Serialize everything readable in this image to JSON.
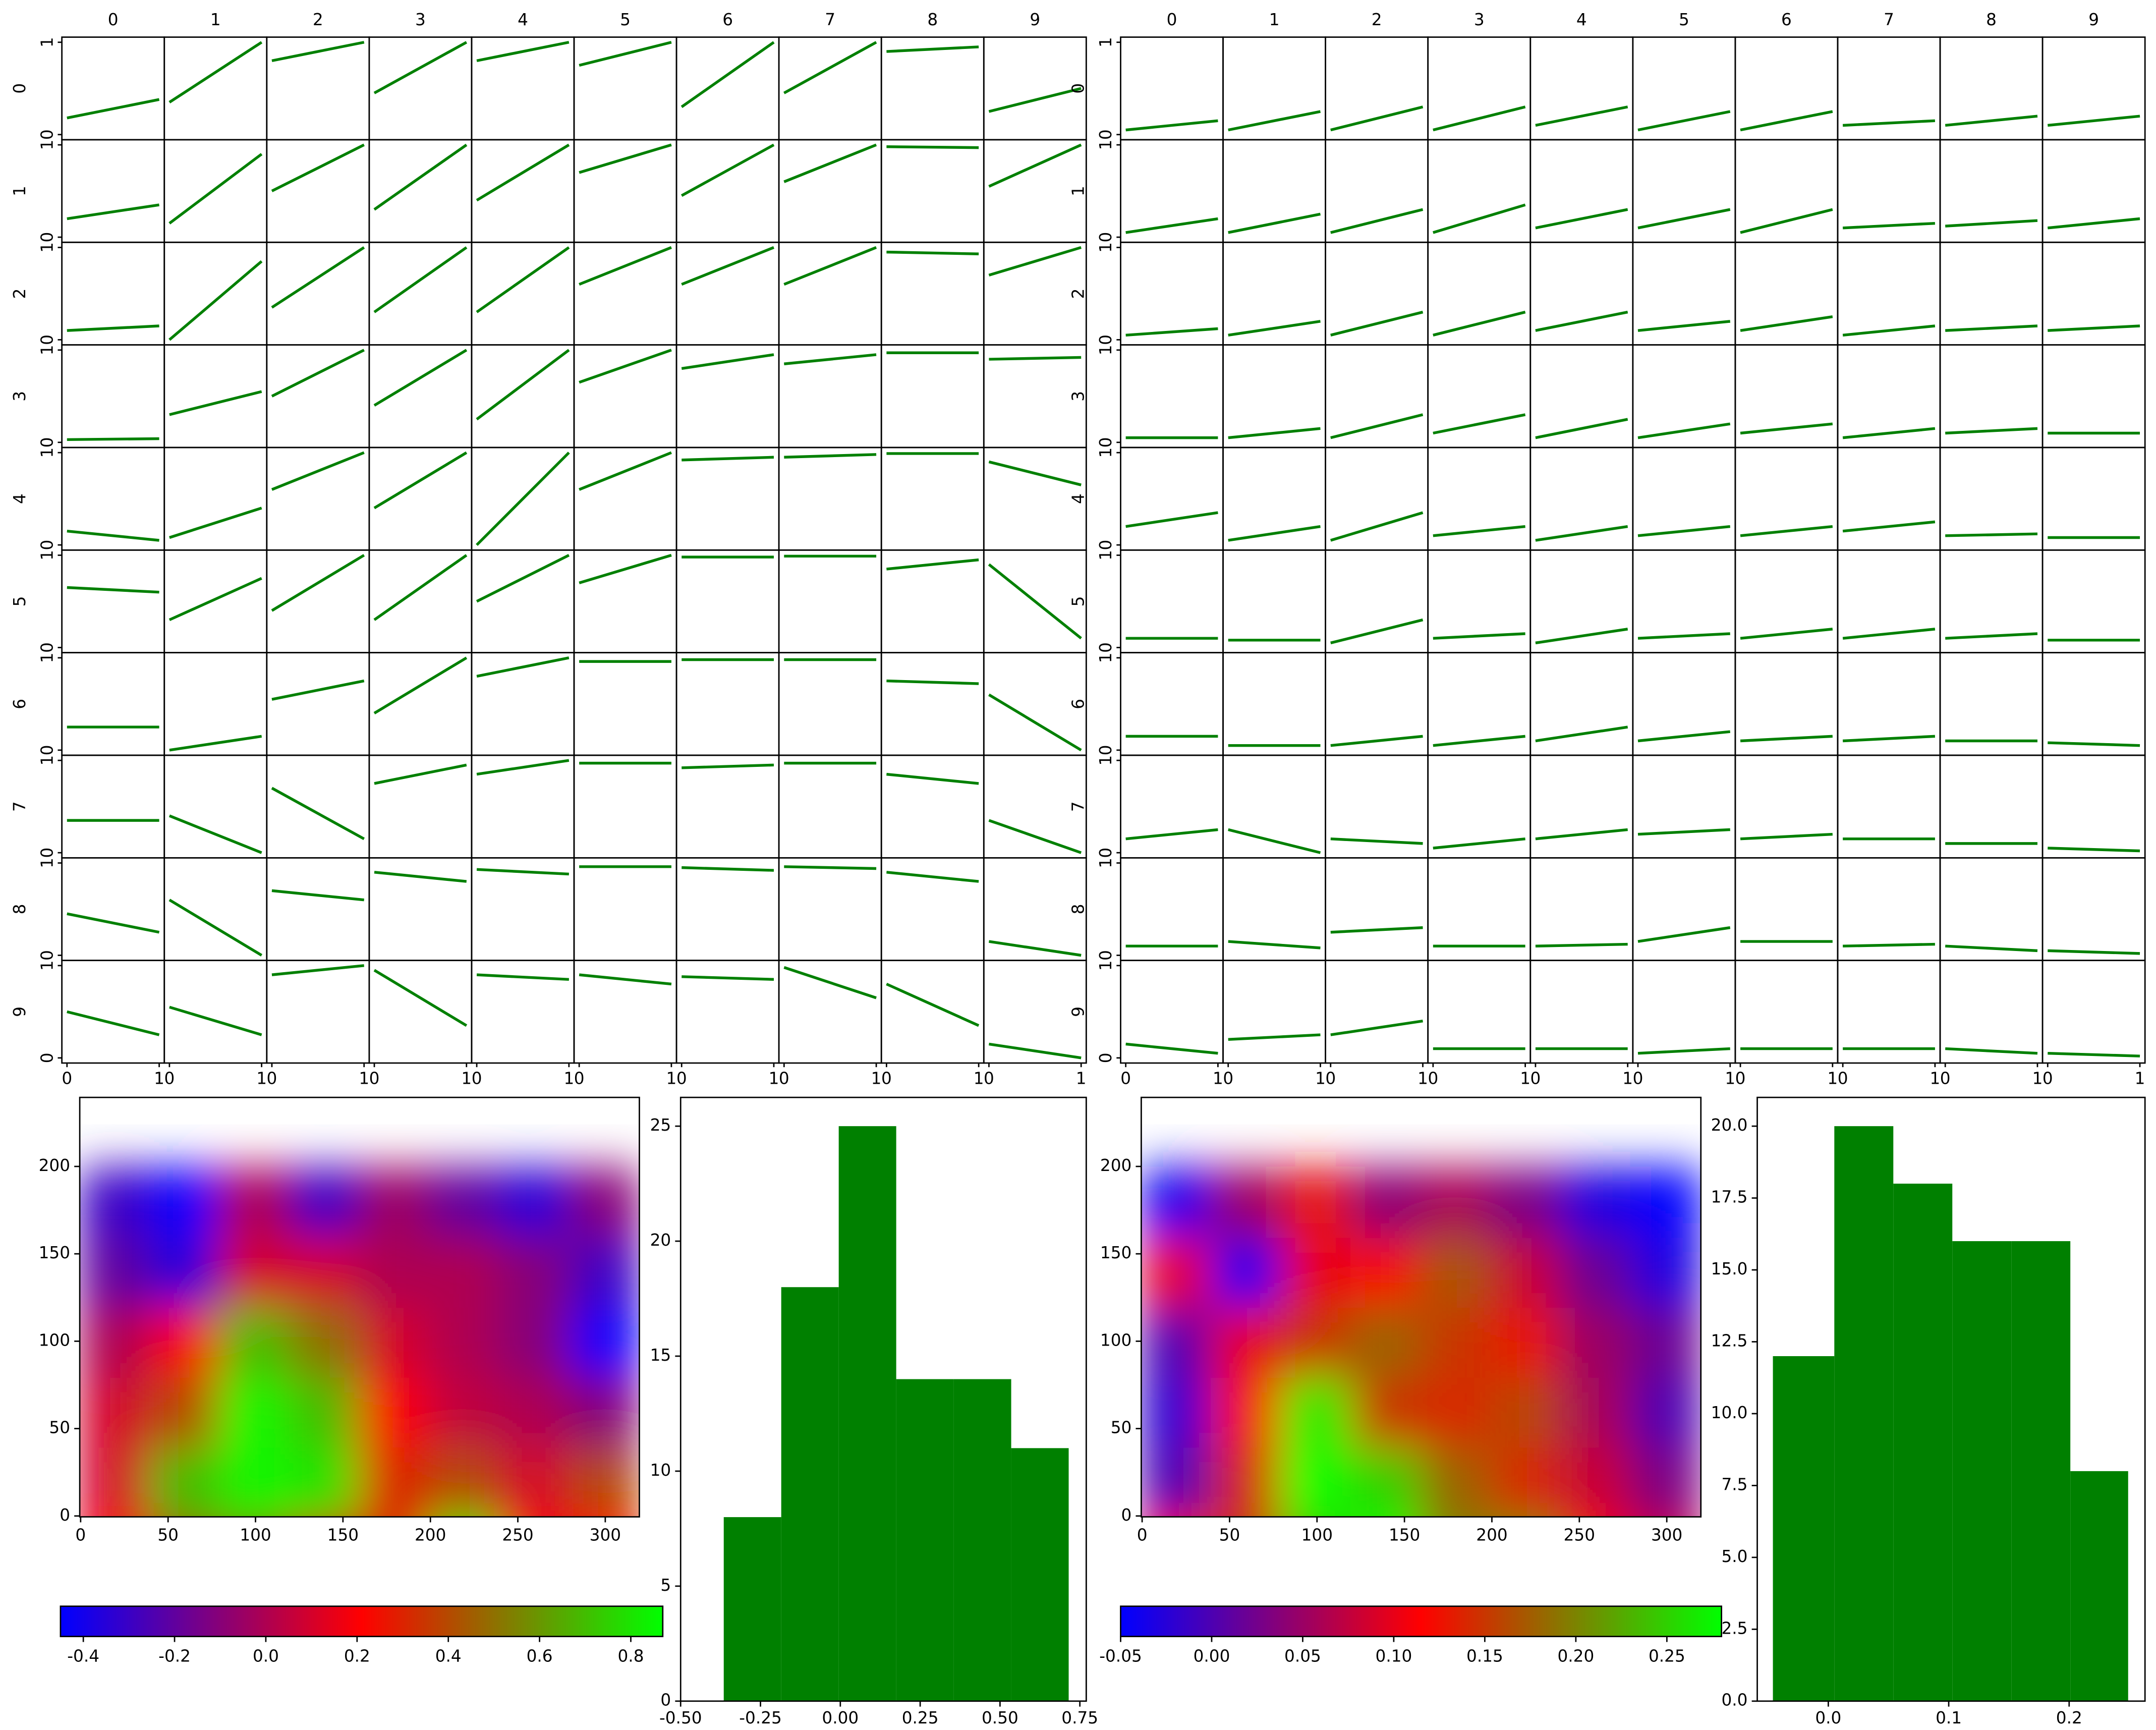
{
  "chart_data": [
    {
      "type": "regression-grid",
      "col_labels": [
        "0",
        "1",
        "2",
        "3",
        "4",
        "5",
        "6",
        "7",
        "8",
        "9"
      ],
      "row_labels": [
        "0",
        "1",
        "2",
        "3",
        "4",
        "5",
        "6",
        "7",
        "8",
        "9"
      ],
      "xlim": [
        0,
        1
      ],
      "ylim": [
        0,
        1
      ],
      "xticks": [
        0,
        1
      ],
      "yticks": [
        0,
        1
      ],
      "color": "#008000",
      "lines": [
        [
          0.18,
          0.38
        ],
        [
          0.35,
          1.0
        ],
        [
          0.8,
          1.0
        ],
        [
          0.45,
          1.0
        ],
        [
          0.8,
          1.0
        ],
        [
          0.75,
          1.0
        ],
        [
          0.3,
          1.0
        ],
        [
          0.45,
          1.0
        ],
        [
          0.9,
          0.95
        ],
        [
          0.25,
          0.5
        ],
        [
          0.2,
          0.35
        ],
        [
          0.15,
          0.9
        ],
        [
          0.5,
          1.0
        ],
        [
          0.3,
          1.0
        ],
        [
          0.4,
          1.0
        ],
        [
          0.7,
          1.0
        ],
        [
          0.45,
          1.0
        ],
        [
          0.6,
          1.0
        ],
        [
          0.98,
          0.97
        ],
        [
          0.55,
          1.0
        ],
        [
          0.1,
          0.15
        ],
        [
          0.0,
          0.85
        ],
        [
          0.35,
          1.0
        ],
        [
          0.3,
          1.0
        ],
        [
          0.3,
          1.0
        ],
        [
          0.6,
          1.0
        ],
        [
          0.6,
          1.0
        ],
        [
          0.6,
          1.0
        ],
        [
          0.95,
          0.93
        ],
        [
          0.7,
          1.0
        ],
        [
          0.03,
          0.04
        ],
        [
          0.3,
          0.55
        ],
        [
          0.5,
          1.0
        ],
        [
          0.4,
          1.0
        ],
        [
          0.25,
          1.0
        ],
        [
          0.65,
          1.0
        ],
        [
          0.8,
          0.95
        ],
        [
          0.85,
          0.95
        ],
        [
          0.97,
          0.97
        ],
        [
          0.9,
          0.92
        ],
        [
          0.15,
          0.05
        ],
        [
          0.08,
          0.4
        ],
        [
          0.6,
          1.0
        ],
        [
          0.4,
          1.0
        ],
        [
          0.0,
          1.0
        ],
        [
          0.6,
          1.0
        ],
        [
          0.92,
          0.95
        ],
        [
          0.95,
          0.98
        ],
        [
          0.99,
          0.99
        ],
        [
          0.9,
          0.65
        ],
        [
          0.65,
          0.6
        ],
        [
          0.3,
          0.75
        ],
        [
          0.4,
          1.0
        ],
        [
          0.3,
          1.0
        ],
        [
          0.5,
          1.0
        ],
        [
          0.7,
          1.0
        ],
        [
          0.98,
          0.98
        ],
        [
          0.99,
          0.99
        ],
        [
          0.85,
          0.95
        ],
        [
          0.9,
          0.1
        ],
        [
          0.25,
          0.25
        ],
        [
          0.0,
          0.15
        ],
        [
          0.55,
          0.75
        ],
        [
          0.4,
          1.0
        ],
        [
          0.8,
          1.0
        ],
        [
          0.96,
          0.96
        ],
        [
          0.98,
          0.98
        ],
        [
          0.98,
          0.98
        ],
        [
          0.75,
          0.72
        ],
        [
          0.6,
          0.0
        ],
        [
          0.35,
          0.35
        ],
        [
          0.4,
          0.0
        ],
        [
          0.7,
          0.15
        ],
        [
          0.75,
          0.95
        ],
        [
          0.85,
          1.0
        ],
        [
          0.97,
          0.97
        ],
        [
          0.92,
          0.95
        ],
        [
          0.97,
          0.97
        ],
        [
          0.85,
          0.75
        ],
        [
          0.35,
          0.0
        ],
        [
          0.45,
          0.25
        ],
        [
          0.6,
          0.0
        ],
        [
          0.7,
          0.6
        ],
        [
          0.9,
          0.8
        ],
        [
          0.93,
          0.88
        ],
        [
          0.96,
          0.96
        ],
        [
          0.95,
          0.92
        ],
        [
          0.96,
          0.94
        ],
        [
          0.9,
          0.8
        ],
        [
          0.15,
          0.0
        ],
        [
          0.5,
          0.25
        ],
        [
          0.55,
          0.25
        ],
        [
          0.9,
          1.0
        ],
        [
          0.95,
          0.35
        ],
        [
          0.9,
          0.85
        ],
        [
          0.9,
          0.8
        ],
        [
          0.88,
          0.85
        ],
        [
          0.98,
          0.65
        ],
        [
          0.8,
          0.35
        ],
        [
          0.15,
          0.0
        ]
      ]
    },
    {
      "type": "regression-grid",
      "col_labels": [
        "0",
        "1",
        "2",
        "3",
        "4",
        "5",
        "6",
        "7",
        "8",
        "9"
      ],
      "row_labels": [
        "0",
        "1",
        "2",
        "3",
        "4",
        "5",
        "6",
        "7",
        "8",
        "9"
      ],
      "xlim": [
        0,
        1
      ],
      "ylim": [
        0,
        1
      ],
      "xticks": [
        0,
        1
      ],
      "yticks": [
        0,
        1
      ],
      "color": "#008000",
      "lines": [
        [
          0.05,
          0.15
        ],
        [
          0.05,
          0.25
        ],
        [
          0.05,
          0.3
        ],
        [
          0.05,
          0.3
        ],
        [
          0.1,
          0.3
        ],
        [
          0.05,
          0.25
        ],
        [
          0.05,
          0.25
        ],
        [
          0.1,
          0.15
        ],
        [
          0.1,
          0.2
        ],
        [
          0.1,
          0.2
        ],
        [
          0.05,
          0.2
        ],
        [
          0.05,
          0.25
        ],
        [
          0.05,
          0.3
        ],
        [
          0.05,
          0.35
        ],
        [
          0.1,
          0.3
        ],
        [
          0.1,
          0.3
        ],
        [
          0.05,
          0.3
        ],
        [
          0.1,
          0.15
        ],
        [
          0.12,
          0.18
        ],
        [
          0.1,
          0.2
        ],
        [
          0.05,
          0.12
        ],
        [
          0.05,
          0.2
        ],
        [
          0.05,
          0.3
        ],
        [
          0.05,
          0.3
        ],
        [
          0.1,
          0.3
        ],
        [
          0.1,
          0.2
        ],
        [
          0.1,
          0.25
        ],
        [
          0.05,
          0.15
        ],
        [
          0.1,
          0.15
        ],
        [
          0.1,
          0.15
        ],
        [
          0.05,
          0.05
        ],
        [
          0.05,
          0.15
        ],
        [
          0.05,
          0.3
        ],
        [
          0.1,
          0.3
        ],
        [
          0.05,
          0.25
        ],
        [
          0.05,
          0.2
        ],
        [
          0.1,
          0.2
        ],
        [
          0.05,
          0.15
        ],
        [
          0.1,
          0.15
        ],
        [
          0.1,
          0.1
        ],
        [
          0.2,
          0.35
        ],
        [
          0.05,
          0.2
        ],
        [
          0.05,
          0.35
        ],
        [
          0.1,
          0.2
        ],
        [
          0.05,
          0.2
        ],
        [
          0.1,
          0.2
        ],
        [
          0.1,
          0.2
        ],
        [
          0.15,
          0.25
        ],
        [
          0.1,
          0.12
        ],
        [
          0.08,
          0.08
        ],
        [
          0.1,
          0.1
        ],
        [
          0.08,
          0.08
        ],
        [
          0.05,
          0.3
        ],
        [
          0.1,
          0.15
        ],
        [
          0.05,
          0.2
        ],
        [
          0.1,
          0.15
        ],
        [
          0.1,
          0.2
        ],
        [
          0.1,
          0.2
        ],
        [
          0.1,
          0.15
        ],
        [
          0.08,
          0.08
        ],
        [
          0.15,
          0.15
        ],
        [
          0.05,
          0.05
        ],
        [
          0.05,
          0.15
        ],
        [
          0.05,
          0.15
        ],
        [
          0.1,
          0.25
        ],
        [
          0.1,
          0.2
        ],
        [
          0.1,
          0.15
        ],
        [
          0.1,
          0.15
        ],
        [
          0.1,
          0.1
        ],
        [
          0.08,
          0.05
        ],
        [
          0.15,
          0.25
        ],
        [
          0.25,
          0.0
        ],
        [
          0.15,
          0.1
        ],
        [
          0.05,
          0.15
        ],
        [
          0.15,
          0.25
        ],
        [
          0.2,
          0.25
        ],
        [
          0.15,
          0.2
        ],
        [
          0.15,
          0.15
        ],
        [
          0.1,
          0.1
        ],
        [
          0.05,
          0.02
        ],
        [
          0.1,
          0.1
        ],
        [
          0.15,
          0.08
        ],
        [
          0.25,
          0.3
        ],
        [
          0.1,
          0.1
        ],
        [
          0.1,
          0.12
        ],
        [
          0.15,
          0.3
        ],
        [
          0.15,
          0.15
        ],
        [
          0.1,
          0.12
        ],
        [
          0.1,
          0.05
        ],
        [
          0.05,
          0.02
        ],
        [
          0.15,
          0.05
        ],
        [
          0.2,
          0.25
        ],
        [
          0.25,
          0.4
        ],
        [
          0.1,
          0.1
        ],
        [
          0.1,
          0.1
        ],
        [
          0.05,
          0.1
        ],
        [
          0.1,
          0.1
        ],
        [
          0.1,
          0.1
        ],
        [
          0.1,
          0.05
        ],
        [
          0.05,
          0.02
        ]
      ]
    },
    {
      "type": "heatmap",
      "xlim": [
        -0.5,
        319.5
      ],
      "ylim": [
        239.5,
        -0.5
      ],
      "xticks": [
        0,
        50,
        100,
        150,
        200,
        250,
        300
      ],
      "yticks": [
        0,
        50,
        100,
        150,
        200
      ],
      "colormap": [
        "#0000ff",
        "#ff0000",
        "#00ff00"
      ],
      "clim": [
        -0.45,
        0.87
      ],
      "cticks": [
        -0.4,
        -0.2,
        {
          "value": 0,
          "label": "0.0"
        },
        0.2,
        0.4,
        0.6,
        0.8
      ],
      "values": [
        [
          0.2,
          0.5,
          0.6,
          0.4,
          0.3,
          0.8,
          0.2,
          0.2
        ],
        [
          0.1,
          0.7,
          0.85,
          0.8,
          0.3,
          0.4,
          0.1,
          0.4
        ],
        [
          0.1,
          0.4,
          0.85,
          0.7,
          0.2,
          0.05,
          0.0,
          -0.1
        ],
        [
          0.0,
          0.2,
          0.7,
          0.5,
          0.1,
          0.0,
          -0.1,
          -0.45
        ],
        [
          -0.2,
          -0.35,
          0.1,
          0.1,
          0.0,
          0.0,
          -0.1,
          -0.3
        ],
        [
          -0.3,
          -0.45,
          0.0,
          -0.3,
          -0.05,
          -0.2,
          -0.35,
          -0.1
        ]
      ]
    },
    {
      "type": "histogram",
      "color": "#008000",
      "bins": [
        -0.365,
        -0.185,
        -0.005,
        0.175,
        0.355,
        0.535,
        0.715
      ],
      "values": [
        8,
        18,
        25,
        14,
        14,
        11
      ],
      "xlim": [
        -0.5,
        0.77
      ],
      "ylim": [
        0,
        26.25
      ],
      "xticks": [
        {
          "value": -0.5,
          "label": "-0.50"
        },
        -0.25,
        {
          "value": 0,
          "label": "0.00"
        },
        0.25,
        {
          "value": 0.5,
          "label": "0.50"
        },
        0.75
      ],
      "yticks": [
        0,
        5,
        10,
        15,
        20,
        25
      ]
    },
    {
      "type": "heatmap",
      "xlim": [
        -0.5,
        319.5
      ],
      "ylim": [
        239.5,
        -0.5
      ],
      "xticks": [
        0,
        50,
        100,
        150,
        200,
        250,
        300
      ],
      "yticks": [
        0,
        50,
        100,
        150,
        200
      ],
      "colormap": [
        "#0000ff",
        "#ff0000",
        "#00ff00"
      ],
      "clim": [
        -0.05,
        0.28
      ],
      "cticks": [
        -0.05,
        {
          "value": 0,
          "label": "0.00"
        },
        0.05,
        {
          "value": 0.1,
          "label": "0.10"
        },
        0.15,
        {
          "value": 0.2,
          "label": "0.20"
        },
        0.25
      ],
      "values": [
        [
          0.12,
          0.15,
          0.25,
          0.28,
          0.2,
          0.2,
          0.12,
          0.08
        ],
        [
          0.0,
          0.14,
          0.28,
          0.25,
          0.18,
          0.14,
          0.08,
          0.03
        ],
        [
          -0.02,
          0.12,
          0.27,
          0.15,
          0.14,
          0.16,
          0.06,
          0.0
        ],
        [
          0.0,
          0.1,
          0.15,
          0.18,
          0.15,
          0.13,
          0.05,
          0.02
        ],
        [
          0.1,
          -0.04,
          0.1,
          0.12,
          0.17,
          0.08,
          0.02,
          -0.03
        ],
        [
          -0.04,
          0.05,
          0.13,
          0.04,
          0.06,
          0.03,
          -0.03,
          -0.05
        ]
      ]
    },
    {
      "type": "histogram",
      "color": "#008000",
      "bins": [
        -0.046,
        0.005,
        0.054,
        0.103,
        0.152,
        0.201,
        0.249
      ],
      "values": [
        12,
        20,
        18,
        16,
        16,
        8
      ],
      "xlim": [
        -0.059,
        0.263
      ],
      "ylim": [
        0,
        21
      ],
      "xticks": [
        {
          "value": 0,
          "label": "0.0"
        },
        0.1,
        0.2,
        0.3
      ],
      "yticks": [
        {
          "value": 0,
          "label": "0.0"
        },
        2.5,
        {
          "value": 5,
          "label": "5.0"
        },
        7.5,
        {
          "value": 10,
          "label": "10.0"
        },
        12.5,
        {
          "value": 15,
          "label": "15.0"
        },
        17.5,
        {
          "value": 20,
          "label": "20.0"
        }
      ]
    }
  ]
}
